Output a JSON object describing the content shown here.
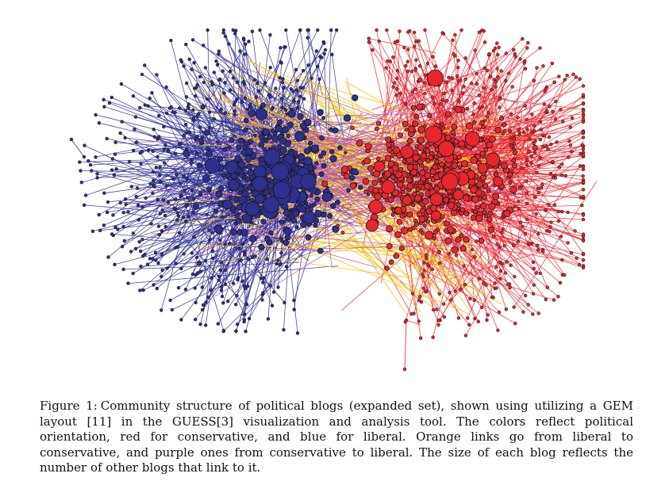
{
  "figure": {
    "label": "Figure 1:",
    "caption": "Community structure of political blogs (expanded set), shown using utilizing a GEM layout [11] in the GUESS[3] visualization and analysis tool. The colors reflect political orientation, red for conservative, and blue for liberal. Orange links go from liberal to conservative, and purple ones from conservative to liberal. The size of each blog reflects the number of other blogs that link to it."
  },
  "colors": {
    "conservative": "#e8262b",
    "liberal": "#2e2f8f",
    "liberal_to_conservative_link": "#f2c21a",
    "conservative_to_liberal_link": "#b44fb0",
    "node_outline": "#1a1a1a",
    "background": "#ffffff"
  }
}
